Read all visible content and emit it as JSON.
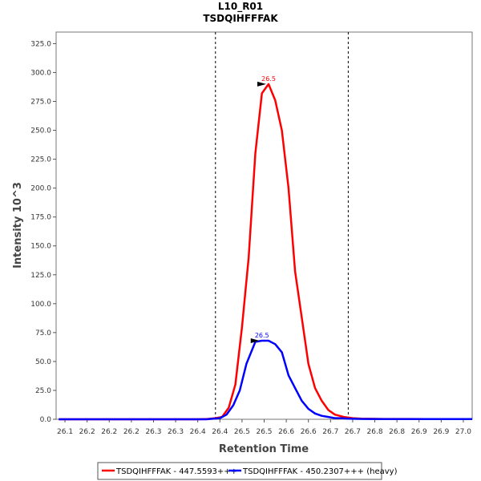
{
  "chart_data": {
    "type": "line",
    "title": "L10_R01",
    "subtitle": "TSDQIHFFFAK",
    "xlabel": "Retention Time",
    "ylabel": "Intensity 10^3",
    "xlim": [
      26.06,
      27.0
    ],
    "ylim": [
      0,
      335
    ],
    "x_ticks": [
      26.08,
      26.13,
      26.18,
      26.23,
      26.28,
      26.33,
      26.38,
      26.43,
      26.48,
      26.53,
      26.58,
      26.63,
      26.68,
      26.73,
      26.78,
      26.83,
      26.88,
      26.93,
      26.98
    ],
    "x_tick_labels": [
      "26.1",
      "26.2",
      "26.2",
      "26.2",
      "26.3",
      "26.3",
      "26.4",
      "26.4",
      "26.5",
      "26.5",
      "26.6",
      "26.6",
      "26.7",
      "26.7",
      "26.8",
      "26.8",
      "26.9",
      "26.9",
      "27.0"
    ],
    "y_ticks": [
      0,
      25,
      50,
      75,
      100,
      125,
      150,
      175,
      200,
      225,
      250,
      275,
      300,
      325
    ],
    "y_tick_labels": [
      "0.0",
      "25.0",
      "50.0",
      "75.0",
      "100.0",
      "125.0",
      "150.0",
      "175.0",
      "200.0",
      "225.0",
      "250.0",
      "275.0",
      "300.0",
      "325.0"
    ],
    "vlines": [
      26.42,
      26.72
    ],
    "series": [
      {
        "name": "TSDQIHFFFAK - 447.5593+++",
        "color": "#ff0000",
        "peak_label": "26.5",
        "peak": [
          26.54,
          290
        ],
        "x": [
          26.066,
          26.08,
          26.1,
          26.15,
          26.2,
          26.25,
          26.3,
          26.35,
          26.38,
          26.4,
          26.42,
          26.435,
          26.45,
          26.465,
          26.48,
          26.495,
          26.51,
          26.525,
          26.54,
          26.555,
          26.57,
          26.585,
          26.6,
          26.615,
          26.63,
          26.645,
          26.66,
          26.675,
          26.69,
          26.71,
          26.73,
          26.75,
          26.8,
          26.9,
          27.0
        ],
        "y": [
          0,
          0,
          0,
          0,
          0,
          0,
          0,
          0,
          0,
          0.2,
          1,
          2,
          10,
          30,
          80,
          140,
          230,
          282,
          290,
          276,
          250,
          200,
          128,
          88,
          48,
          27,
          16,
          8,
          4,
          2,
          1,
          0.5,
          0.3,
          0.2,
          0.2
        ]
      },
      {
        "name": "TSDQIHFFFAK - 450.2307+++ (heavy)",
        "color": "#0000ff",
        "peak_label": "26.5",
        "peak": [
          26.525,
          68
        ],
        "x": [
          26.066,
          26.1,
          26.2,
          26.3,
          26.4,
          26.43,
          26.445,
          26.46,
          26.475,
          26.49,
          26.51,
          26.525,
          26.54,
          26.555,
          26.57,
          26.585,
          26.6,
          26.615,
          26.63,
          26.645,
          26.66,
          26.675,
          26.69,
          26.705,
          26.72,
          26.75,
          26.8,
          26.9,
          27.0
        ],
        "y": [
          0,
          0,
          0,
          0,
          0,
          1,
          4,
          12,
          25,
          48,
          67,
          68,
          68,
          65,
          58,
          38,
          27,
          16,
          9,
          5,
          3,
          2,
          1,
          1,
          0.5,
          0.3,
          0.2,
          0.2,
          0.2
        ]
      }
    ]
  }
}
